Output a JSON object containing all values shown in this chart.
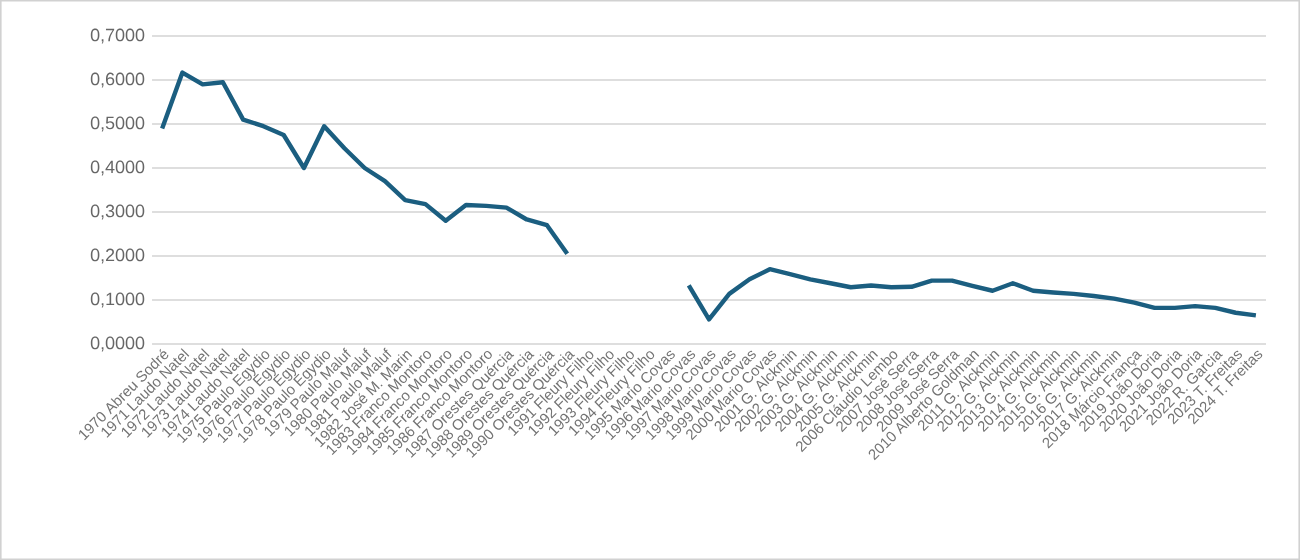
{
  "chart_data": {
    "type": "line",
    "categories": [
      "1970 Abreu Sodré",
      "1971 Laudo Natel",
      "1972 Laudo Natel",
      "1973 Laudo Natel",
      "1974 Laudo Natel",
      "1975 Paulo Egydio",
      "1976 Paulo Egydio",
      "1977 Paulo Egydio",
      "1978 Paulo Egydio",
      "1979 Paulo Maluf",
      "1980 Paulo Maluf",
      "1981 Paulo Maluf",
      "1982 José M. Marin",
      "1983 Franco Montoro",
      "1984 Franco Montoro",
      "1985 Franco Montoro",
      "1986 Franco Montoro",
      "1987 Orestes Quércia",
      "1988 Orestes Quércia",
      "1989 Orestes Quércia",
      "1990 Orestes Quércia",
      "1991 Fleury Filho",
      "1992 Fleury Filho",
      "1993 Fleury Filho",
      "1994 Fleury Filho",
      "1995 Mario Covas",
      "1996 Mario Covas",
      "1997 Mario Covas",
      "1998 Mario Covas",
      "1999 Mario Covas",
      "2000 Mario Covas",
      "2001 G. Alckmin",
      "2002 G. Alckmin",
      "2003 G. Alckmin",
      "2004 G. Alckmin",
      "2005 G. Alckmin",
      "2006 Cláudio Lembo",
      "2007 José Serra",
      "2008 José Serra",
      "2009 José Serra",
      "2010 Alberto Goldman",
      "2011 G. Alckmin",
      "2012 G. Alckmin",
      "2013 G. Alckmin",
      "2014 G. Alckmin",
      "2015 G. Alckmin",
      "2016 G. Alckmin",
      "2017 G. Alckmin",
      "2018 Márcio França",
      "2019 João Doria",
      "2020 João Doria",
      "2021 João Doria",
      "2022 R. Garcia",
      "2023 T. Freitas",
      "2024 T. Freitas"
    ],
    "values": [
      0.49,
      0.617,
      0.59,
      0.595,
      0.51,
      0.495,
      0.475,
      0.4,
      0.495,
      0.445,
      0.4,
      0.37,
      0.327,
      0.318,
      0.28,
      0.316,
      0.314,
      0.31,
      0.283,
      0.27,
      0.205,
      null,
      null,
      null,
      null,
      null,
      0.133,
      0.056,
      0.114,
      0.147,
      0.17,
      0.159,
      0.147,
      0.138,
      0.129,
      0.133,
      0.129,
      0.13,
      0.144,
      0.144,
      0.132,
      0.121,
      0.138,
      0.121,
      0.117,
      0.114,
      0.109,
      0.103,
      0.094,
      0.082,
      0.082,
      0.086,
      0.082,
      0.071,
      0.065
    ],
    "color": "#1b5e80",
    "ylim": [
      0,
      0.7
    ],
    "yticks": [
      {
        "value": 0,
        "label": "0,0000"
      },
      {
        "value": 0.1,
        "label": "0,1000"
      },
      {
        "value": 0.2,
        "label": "0,2000"
      },
      {
        "value": 0.3,
        "label": "0,3000"
      },
      {
        "value": 0.4,
        "label": "0,4000"
      },
      {
        "value": 0.5,
        "label": "0,5000"
      },
      {
        "value": 0.6,
        "label": "0,6000"
      },
      {
        "value": 0.7,
        "label": "0,7000"
      }
    ],
    "grid": "y",
    "line_style": "solid"
  }
}
